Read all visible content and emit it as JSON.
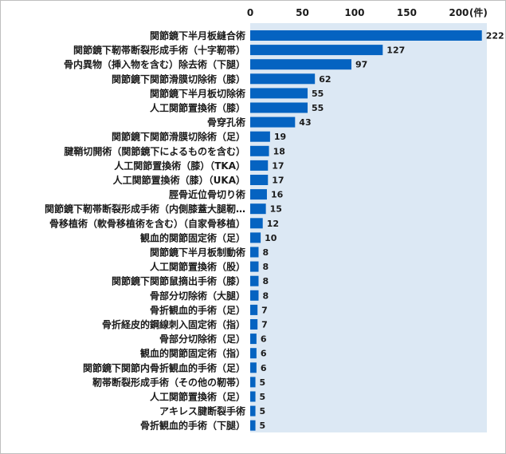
{
  "chart_data": {
    "type": "bar",
    "orientation": "horizontal",
    "categories": [
      "関節鏡下半月板縫合術",
      "関節鏡下靭帯断裂形成手術（十字靭帯）",
      "骨内異物（挿入物を含む）除去術（下腿）",
      "関節鏡下関節滑膜切除術（膝）",
      "関節鏡下半月板切除術",
      "人工関節置換術（膝）",
      "骨穿孔術",
      "関節鏡下関節滑膜切除術（足）",
      "腱鞘切開術（関節鏡下によるものを含む）",
      "人工関節置換術（膝）（TKA）",
      "人工関節置換術（膝）（UKA）",
      "脛骨近位骨切り術",
      "関節鏡下靭帯断裂形成手術（内側膝蓋大腿靭…",
      "骨移植術（軟骨移植術を含む）（自家骨移植）",
      "観血的関節固定術（足）",
      "関節鏡下半月板制動術",
      "人工関節置換術（股）",
      "関節鏡下関節鼠摘出手術（膝）",
      "骨部分切除術（大腿）",
      "骨折観血的手術（足）",
      "骨折経皮的鋼線刺入固定術（指）",
      "骨部分切除術（足）",
      "観血的関節固定術（指）",
      "関節鏡下関節内骨折観血的手術（足）",
      "靭帯断裂形成手術（その他の靭帯）",
      "人工関節置換術（足）",
      "アキレス腱断裂手術",
      "骨折観血的手術（下腿）"
    ],
    "values": [
      222,
      127,
      97,
      62,
      55,
      55,
      43,
      19,
      18,
      17,
      17,
      16,
      15,
      12,
      10,
      8,
      8,
      8,
      8,
      7,
      7,
      6,
      6,
      6,
      5,
      5,
      5,
      5
    ],
    "xlim": [
      0,
      225
    ],
    "x_ticks": [
      "0",
      "50",
      "100",
      "150",
      "200"
    ],
    "x_tick_values": [
      0,
      50,
      100,
      150,
      200
    ],
    "x_unit": "(件)",
    "grid": false,
    "colors": {
      "bar": "#0563c1",
      "plot_bg": "#dce8f4",
      "frame": "#bfbfbf",
      "text": "#1a1a1a"
    }
  }
}
